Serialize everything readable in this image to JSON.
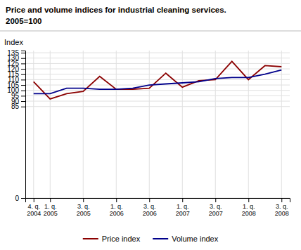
{
  "chart_data": {
    "type": "line",
    "title": "Price and volume indices for industrial cleaning services.",
    "subtitle": "2005=100",
    "y_label": "Index",
    "categories": [
      "4. q.\n2004",
      "1. q.\n2005",
      null,
      "3. q.\n2005",
      null,
      "1. q.\n2006",
      null,
      "3. q.\n2006",
      null,
      "1. q.\n2007",
      null,
      "3. q.\n2007",
      null,
      "1. q.\n2008",
      null,
      "3. q.\n2008"
    ],
    "series": [
      {
        "name": "Price index",
        "color": "#8B0000",
        "values": [
          108,
          92,
          97,
          99,
          113,
          101,
          101,
          102,
          116,
          103,
          109,
          110,
          127,
          110,
          123,
          122
        ]
      },
      {
        "name": "Volume index",
        "color": "#00008B",
        "values": [
          97,
          97,
          102,
          102,
          101,
          101,
          102,
          105,
          106,
          107,
          108,
          111,
          112,
          112,
          115,
          119
        ]
      }
    ],
    "ylim": [
      0,
      137
    ],
    "yticks": [
      0,
      85,
      90,
      95,
      100,
      105,
      110,
      115,
      120,
      125,
      130,
      135
    ],
    "grid": true,
    "legend": "bottom"
  }
}
